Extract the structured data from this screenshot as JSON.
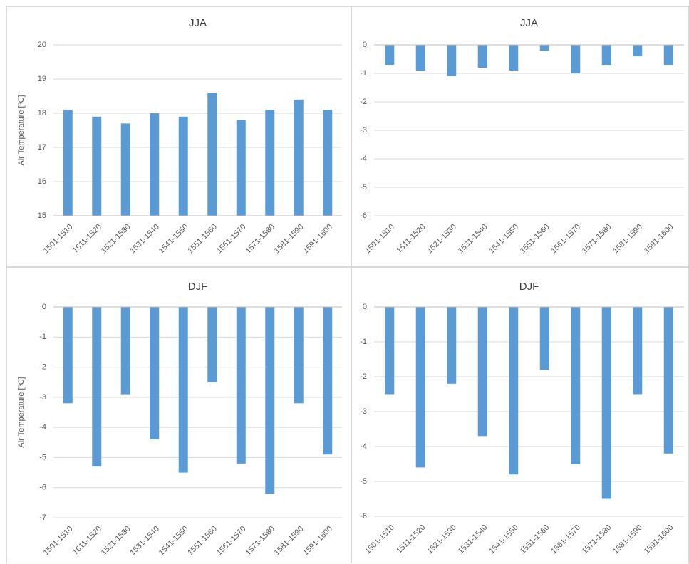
{
  "chart_data": [
    {
      "type": "bar",
      "title": "JJA",
      "y_label": "Air Temperature [ºC]",
      "categories": [
        "1501-1510",
        "1511-1520",
        "1521-1530",
        "1531-1540",
        "1541-1550",
        "1551-1560",
        "1561-1570",
        "1571-1580",
        "1581-1590",
        "1591-1600"
      ],
      "values": [
        18.1,
        17.9,
        17.7,
        18.0,
        17.9,
        18.6,
        17.8,
        18.1,
        18.4,
        18.1
      ],
      "color": "#5b9bd5",
      "ylim": [
        15,
        20
      ],
      "yticks": [
        15,
        16,
        17,
        18,
        19,
        20
      ],
      "grid": true
    },
    {
      "type": "bar",
      "title": "JJA",
      "categories": [
        "1501-1510",
        "1511-1520",
        "1521-1530",
        "1531-1540",
        "1541-1550",
        "1551-1560",
        "1561-1570",
        "1571-1580",
        "1581-1590",
        "1591-1600"
      ],
      "values": [
        -0.7,
        -0.9,
        -1.1,
        -0.8,
        -0.9,
        -0.2,
        -1.0,
        -0.7,
        -0.4,
        -0.7
      ],
      "color": "#5b9bd5",
      "ylim": [
        -6,
        0
      ],
      "yticks": [
        -6,
        -5,
        -4,
        -3,
        -2,
        -1,
        0
      ],
      "grid": true
    },
    {
      "type": "bar",
      "title": "DJF",
      "y_label": "Air Temperature [ºC]",
      "categories": [
        "1501-1510",
        "1511-1520",
        "1521-1530",
        "1531-1540",
        "1541-1550",
        "1551-1560",
        "1561-1570",
        "1571-1580",
        "1581-1590",
        "1591-1600"
      ],
      "values": [
        -3.2,
        -5.3,
        -2.9,
        -4.4,
        -5.5,
        -2.5,
        -5.2,
        -6.2,
        -3.2,
        -4.9
      ],
      "color": "#5b9bd5",
      "ylim": [
        -7,
        0
      ],
      "yticks": [
        -7,
        -6,
        -5,
        -4,
        -3,
        -2,
        -1,
        0
      ],
      "grid": true
    },
    {
      "type": "bar",
      "title": "DJF",
      "categories": [
        "1501-1510",
        "1511-1520",
        "1521-1530",
        "1531-1540",
        "1541-1550",
        "1551-1560",
        "1561-1570",
        "1571-1580",
        "1581-1590",
        "1591-1600"
      ],
      "values": [
        -2.5,
        -4.6,
        -2.2,
        -3.7,
        -4.8,
        -1.8,
        -4.5,
        -5.5,
        -2.5,
        -4.2
      ],
      "color": "#5b9bd5",
      "ylim": [
        -6,
        0
      ],
      "yticks": [
        -6,
        -5,
        -4,
        -3,
        -2,
        -1,
        0
      ],
      "grid": true
    }
  ]
}
